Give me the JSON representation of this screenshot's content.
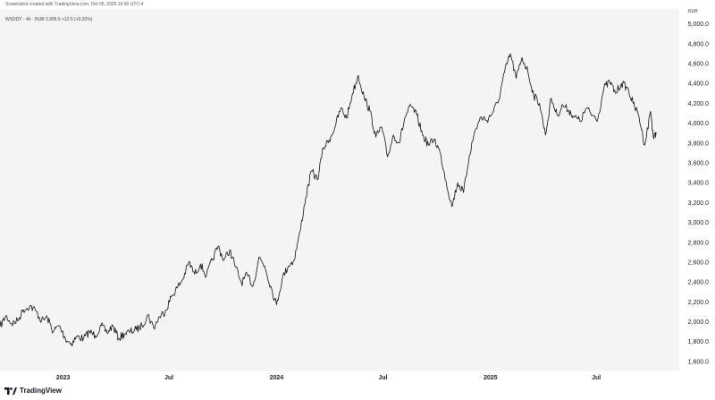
{
  "header": {
    "caption": "Screenshot created with TradingView.com, Oct 05, 2025 16:00 UTC-4"
  },
  "legend": {
    "symbol_text": "WXDDY · 4h · RUB 3,905.5 +12.5 (+0.32%)"
  },
  "currency": "RUB",
  "brand": {
    "name": "TradingView",
    "icon": "tradingview-logo-icon"
  },
  "colors": {
    "line": "#111111",
    "plot_background": "#f4f4f4",
    "page_background": "#ffffff"
  },
  "chart_data": {
    "type": "line",
    "title": "",
    "xlabel": "",
    "ylabel": "",
    "grid": false,
    "ylim": [
      1500,
      5150
    ],
    "y_ticks": [
      {
        "value": 1600,
        "label": "1,600.0"
      },
      {
        "value": 1800,
        "label": "1,800.0"
      },
      {
        "value": 2000,
        "label": "2,000.0"
      },
      {
        "value": 2200,
        "label": "2,200.0"
      },
      {
        "value": 2400,
        "label": "2,400.0"
      },
      {
        "value": 2600,
        "label": "2,600.0"
      },
      {
        "value": 2800,
        "label": "2,800.0"
      },
      {
        "value": 3000,
        "label": "3,000.0"
      },
      {
        "value": 3200,
        "label": "3,200.0"
      },
      {
        "value": 3400,
        "label": "3,400.0"
      },
      {
        "value": 3600,
        "label": "3,600.0"
      },
      {
        "value": 3800,
        "label": "3,800.0"
      },
      {
        "value": 4000,
        "label": "4,000.0"
      },
      {
        "value": 4200,
        "label": "4,200.0"
      },
      {
        "value": 4400,
        "label": "4,400.0"
      },
      {
        "value": 4600,
        "label": "4,600.0"
      },
      {
        "value": 4800,
        "label": "4,800.0"
      },
      {
        "value": 5000,
        "label": "5,000.0"
      }
    ],
    "x_range": [
      "2022-09-15",
      "2025-11-20"
    ],
    "x_ticks": [
      {
        "date": "2023-01-01",
        "label": "2023"
      },
      {
        "date": "2023-07-01",
        "label": "Jul"
      },
      {
        "date": "2024-01-01",
        "label": "2024"
      },
      {
        "date": "2024-07-01",
        "label": "Jul"
      },
      {
        "date": "2025-01-01",
        "label": "2025"
      },
      {
        "date": "2025-07-01",
        "label": "Jul"
      }
    ],
    "series": [
      {
        "values": [
          [
            "2022-09-15",
            1950
          ],
          [
            "2022-09-25",
            2060
          ],
          [
            "2022-10-05",
            1980
          ],
          [
            "2022-10-15",
            2010
          ],
          [
            "2022-10-25",
            2120
          ],
          [
            "2022-11-05",
            2160
          ],
          [
            "2022-11-15",
            2110
          ],
          [
            "2022-11-25",
            2010
          ],
          [
            "2022-12-05",
            2040
          ],
          [
            "2022-12-15",
            1900
          ],
          [
            "2022-12-25",
            1960
          ],
          [
            "2023-01-05",
            1830
          ],
          [
            "2023-01-15",
            1780
          ],
          [
            "2023-01-25",
            1850
          ],
          [
            "2023-02-05",
            1830
          ],
          [
            "2023-02-15",
            1900
          ],
          [
            "2023-02-25",
            1860
          ],
          [
            "2023-03-07",
            1960
          ],
          [
            "2023-03-17",
            1890
          ],
          [
            "2023-03-27",
            1960
          ],
          [
            "2023-04-06",
            1830
          ],
          [
            "2023-04-16",
            1880
          ],
          [
            "2023-04-26",
            1900
          ],
          [
            "2023-05-06",
            1920
          ],
          [
            "2023-05-16",
            1960
          ],
          [
            "2023-05-26",
            2070
          ],
          [
            "2023-06-05",
            1940
          ],
          [
            "2023-06-15",
            2050
          ],
          [
            "2023-06-25",
            2110
          ],
          [
            "2023-07-05",
            2250
          ],
          [
            "2023-07-15",
            2340
          ],
          [
            "2023-07-25",
            2430
          ],
          [
            "2023-08-04",
            2600
          ],
          [
            "2023-08-14",
            2480
          ],
          [
            "2023-08-24",
            2580
          ],
          [
            "2023-09-03",
            2460
          ],
          [
            "2023-09-13",
            2620
          ],
          [
            "2023-09-23",
            2760
          ],
          [
            "2023-10-03",
            2620
          ],
          [
            "2023-10-13",
            2720
          ],
          [
            "2023-10-23",
            2550
          ],
          [
            "2023-11-02",
            2390
          ],
          [
            "2023-11-12",
            2470
          ],
          [
            "2023-11-22",
            2360
          ],
          [
            "2023-12-02",
            2650
          ],
          [
            "2023-12-12",
            2560
          ],
          [
            "2023-12-22",
            2360
          ],
          [
            "2024-01-01",
            2170
          ],
          [
            "2024-01-11",
            2440
          ],
          [
            "2024-01-21",
            2560
          ],
          [
            "2024-01-31",
            2620
          ],
          [
            "2024-02-10",
            2900
          ],
          [
            "2024-02-20",
            3250
          ],
          [
            "2024-03-01",
            3520
          ],
          [
            "2024-03-11",
            3430
          ],
          [
            "2024-03-21",
            3750
          ],
          [
            "2024-03-31",
            3830
          ],
          [
            "2024-04-10",
            3960
          ],
          [
            "2024-04-20",
            4150
          ],
          [
            "2024-04-30",
            4050
          ],
          [
            "2024-05-10",
            4300
          ],
          [
            "2024-05-20",
            4480
          ],
          [
            "2024-05-30",
            4260
          ],
          [
            "2024-06-09",
            4120
          ],
          [
            "2024-06-19",
            3860
          ],
          [
            "2024-06-29",
            3960
          ],
          [
            "2024-07-09",
            3660
          ],
          [
            "2024-07-19",
            3880
          ],
          [
            "2024-07-29",
            3800
          ],
          [
            "2024-08-08",
            4060
          ],
          [
            "2024-08-18",
            4170
          ],
          [
            "2024-08-28",
            4080
          ],
          [
            "2024-09-07",
            3880
          ],
          [
            "2024-09-17",
            3780
          ],
          [
            "2024-09-27",
            3840
          ],
          [
            "2024-10-07",
            3700
          ],
          [
            "2024-10-17",
            3420
          ],
          [
            "2024-10-27",
            3160
          ],
          [
            "2024-11-06",
            3400
          ],
          [
            "2024-11-16",
            3300
          ],
          [
            "2024-11-26",
            3680
          ],
          [
            "2024-12-06",
            3930
          ],
          [
            "2024-12-16",
            4060
          ],
          [
            "2024-12-26",
            4030
          ],
          [
            "2025-01-05",
            4110
          ],
          [
            "2025-01-15",
            4230
          ],
          [
            "2025-01-25",
            4510
          ],
          [
            "2025-02-04",
            4700
          ],
          [
            "2025-02-14",
            4450
          ],
          [
            "2025-02-24",
            4660
          ],
          [
            "2025-03-06",
            4520
          ],
          [
            "2025-03-16",
            4280
          ],
          [
            "2025-03-26",
            4200
          ],
          [
            "2025-04-05",
            3880
          ],
          [
            "2025-04-15",
            4250
          ],
          [
            "2025-04-25",
            4080
          ],
          [
            "2025-05-05",
            4180
          ],
          [
            "2025-05-15",
            4130
          ],
          [
            "2025-05-25",
            4060
          ],
          [
            "2025-06-04",
            4020
          ],
          [
            "2025-06-14",
            4150
          ],
          [
            "2025-06-24",
            4080
          ],
          [
            "2025-07-04",
            4050
          ],
          [
            "2025-07-14",
            4350
          ],
          [
            "2025-07-24",
            4420
          ],
          [
            "2025-08-03",
            4300
          ],
          [
            "2025-08-13",
            4400
          ],
          [
            "2025-08-23",
            4360
          ],
          [
            "2025-09-02",
            4200
          ],
          [
            "2025-09-12",
            4070
          ],
          [
            "2025-09-22",
            3780
          ],
          [
            "2025-10-02",
            4120
          ],
          [
            "2025-10-07",
            3850
          ],
          [
            "2025-10-12",
            3900
          ]
        ]
      }
    ]
  }
}
